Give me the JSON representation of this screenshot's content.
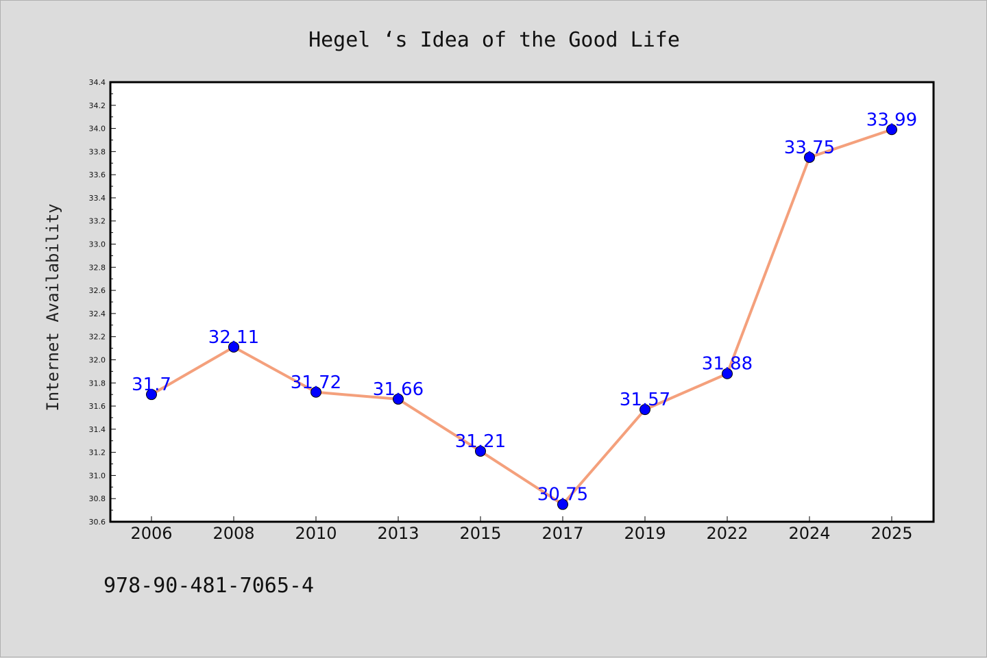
{
  "chart_data": {
    "type": "line",
    "title": "Hegel ‘s Idea of the Good Life",
    "xlabel": "",
    "ylabel": "Internet Availability",
    "categories": [
      "2006",
      "2008",
      "2010",
      "2013",
      "2015",
      "2017",
      "2019",
      "2022",
      "2024",
      "2025"
    ],
    "values": [
      31.7,
      32.11,
      31.72,
      31.66,
      31.21,
      30.75,
      31.57,
      31.88,
      33.75,
      33.99
    ],
    "value_labels": [
      "31.7",
      "32.11",
      "31.72",
      "31.66",
      "31.21",
      "30.75",
      "31.57",
      "31.88",
      "33.75",
      "33.99"
    ],
    "ylim": [
      30.6,
      34.4
    ],
    "yticks": [
      "30.6",
      "30.8",
      "31.0",
      "31.2",
      "31.4",
      "31.6",
      "31.8",
      "32.0",
      "32.2",
      "32.4",
      "32.6",
      "32.8",
      "33.0",
      "33.2",
      "33.4",
      "33.6",
      "33.8",
      "34.0",
      "34.2",
      "34.4"
    ],
    "grid": false,
    "legend": "none",
    "colors": {
      "line": "#f4a07c",
      "marker": "#0000ff",
      "label": "#0000ff",
      "background": "#dcdcdc",
      "plot_background": "#ffffff"
    }
  },
  "footnote": "978-90-481-7065-4"
}
